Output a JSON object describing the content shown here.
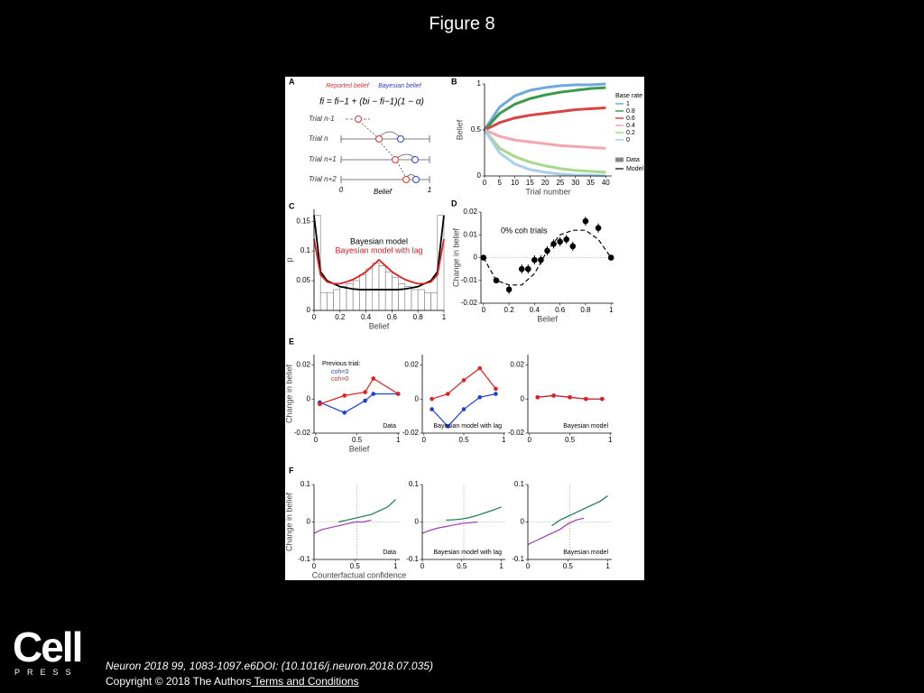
{
  "title": "Figure 8",
  "panel_labels": [
    "A",
    "B",
    "C",
    "D",
    "E",
    "F"
  ],
  "panel_a": {
    "reported": "Reported belief",
    "bayesian": "Bayesian belief",
    "formula": "fi = fi−1 + (bi − fi−1)(1 − α)",
    "trials": [
      "Trial n-1",
      "Trial n",
      "Trial n+1",
      "Trial n+2"
    ],
    "axis_min": "0",
    "axis_label": "Belief",
    "axis_max": "1"
  },
  "chart_data": [
    {
      "type": "line",
      "xlim": [
        0,
        42
      ],
      "ylim": [
        0,
        1
      ],
      "xticks": [
        0,
        5,
        10,
        15,
        20,
        25,
        30,
        35,
        40
      ],
      "yticks": [
        0,
        0.5,
        1
      ],
      "xlabel": "Trial number",
      "ylabel": "Belief",
      "legend_title": "Base rate",
      "legend_styles": [
        "Data",
        "Model"
      ],
      "series": [
        {
          "name": "1",
          "color": "#6fa8dc",
          "x": [
            0,
            5,
            10,
            15,
            20,
            25,
            30,
            35,
            40
          ],
          "values": [
            0.5,
            0.75,
            0.87,
            0.93,
            0.96,
            0.98,
            0.99,
            0.99,
            1
          ]
        },
        {
          "name": "0.8",
          "color": "#3a9a4a",
          "x": [
            0,
            5,
            10,
            15,
            20,
            25,
            30,
            35,
            40
          ],
          "values": [
            0.5,
            0.68,
            0.78,
            0.84,
            0.88,
            0.91,
            0.93,
            0.95,
            0.96
          ]
        },
        {
          "name": "0.6",
          "color": "#d64545",
          "x": [
            0,
            5,
            10,
            15,
            20,
            25,
            30,
            35,
            40
          ],
          "values": [
            0.5,
            0.58,
            0.63,
            0.66,
            0.68,
            0.7,
            0.72,
            0.73,
            0.74
          ]
        },
        {
          "name": "0.4",
          "color": "#f4a6b0",
          "x": [
            0,
            5,
            10,
            15,
            20,
            25,
            30,
            35,
            40
          ],
          "values": [
            0.5,
            0.43,
            0.39,
            0.37,
            0.35,
            0.33,
            0.32,
            0.31,
            0.3
          ]
        },
        {
          "name": "0.2",
          "color": "#a8d88a",
          "x": [
            0,
            5,
            10,
            15,
            20,
            25,
            30,
            35,
            40
          ],
          "values": [
            0.5,
            0.3,
            0.21,
            0.15,
            0.11,
            0.08,
            0.06,
            0.05,
            0.04
          ]
        },
        {
          "name": "0",
          "color": "#a9cfea",
          "x": [
            0,
            5,
            10,
            15,
            20,
            25,
            30,
            35,
            40
          ],
          "values": [
            0.5,
            0.25,
            0.13,
            0.07,
            0.04,
            0.02,
            0.01,
            0.01,
            0
          ]
        }
      ]
    },
    {
      "type": "histogram",
      "xlim": [
        0,
        1
      ],
      "ylim": [
        0,
        0.17
      ],
      "xticks": [
        0,
        0.2,
        0.4,
        0.6,
        0.8,
        1
      ],
      "yticks": [
        0,
        0.05,
        0.1,
        0.15
      ],
      "xlabel": "Belief",
      "ylabel": "p",
      "bins": [
        0,
        0.05,
        0.1,
        0.15,
        0.2,
        0.25,
        0.3,
        0.35,
        0.4,
        0.45,
        0.5,
        0.55,
        0.6,
        0.65,
        0.7,
        0.75,
        0.8,
        0.85,
        0.9,
        0.95,
        1
      ],
      "counts": [
        0.16,
        0.03,
        0.03,
        0.035,
        0.04,
        0.045,
        0.05,
        0.06,
        0.07,
        0.08,
        0.075,
        0.065,
        0.055,
        0.045,
        0.04,
        0.035,
        0.035,
        0.03,
        0.03,
        0.16
      ],
      "series": [
        {
          "name": "Bayesian model",
          "color": "#000000",
          "x": [
            0,
            0.05,
            0.1,
            0.15,
            0.2,
            0.25,
            0.3,
            0.35,
            0.4,
            0.45,
            0.5,
            0.55,
            0.6,
            0.65,
            0.7,
            0.75,
            0.8,
            0.85,
            0.9,
            0.95,
            1
          ],
          "values": [
            0.16,
            0.065,
            0.05,
            0.045,
            0.04,
            0.038,
            0.036,
            0.035,
            0.035,
            0.035,
            0.035,
            0.035,
            0.035,
            0.035,
            0.036,
            0.038,
            0.04,
            0.045,
            0.05,
            0.065,
            0.16
          ]
        },
        {
          "name": "Bayesian model with lag",
          "color": "#e02020",
          "x": [
            0,
            0.05,
            0.1,
            0.15,
            0.2,
            0.25,
            0.3,
            0.35,
            0.4,
            0.45,
            0.5,
            0.55,
            0.6,
            0.65,
            0.7,
            0.75,
            0.8,
            0.85,
            0.9,
            0.95,
            1
          ],
          "values": [
            0.12,
            0.06,
            0.048,
            0.045,
            0.045,
            0.048,
            0.052,
            0.058,
            0.065,
            0.075,
            0.085,
            0.075,
            0.065,
            0.058,
            0.052,
            0.048,
            0.045,
            0.045,
            0.048,
            0.06,
            0.12
          ]
        }
      ]
    },
    {
      "type": "scatter",
      "xlim": [
        -0.02,
        1.02
      ],
      "ylim": [
        -0.02,
        0.02
      ],
      "xticks": [
        0,
        0.2,
        0.4,
        0.6,
        0.8,
        1
      ],
      "yticks": [
        -0.02,
        -0.01,
        0,
        0.01,
        0.02
      ],
      "xlabel": "Belief",
      "ylabel": "Change in belief",
      "annotation": "0% coh trials",
      "reference_lines": true,
      "series": [
        {
          "color": "#000000",
          "x": [
            0,
            0.1,
            0.2,
            0.3,
            0.35,
            0.4,
            0.45,
            0.5,
            0.55,
            0.6,
            0.65,
            0.7,
            0.8,
            0.9,
            1
          ],
          "values": [
            0,
            -0.01,
            -0.014,
            -0.005,
            -0.005,
            -0.001,
            -0.001,
            0.003,
            0.006,
            0.007,
            0.008,
            0.005,
            0.016,
            0.013,
            0
          ],
          "errors": [
            0.001,
            0.001,
            0.002,
            0.002,
            0.002,
            0.002,
            0.002,
            0.002,
            0.002,
            0.002,
            0.002,
            0.002,
            0.002,
            0.002,
            0.001
          ]
        },
        {
          "color": "#000000",
          "dashed": true,
          "x": [
            0,
            0.1,
            0.2,
            0.3,
            0.4,
            0.5,
            0.6,
            0.7,
            0.8,
            0.9,
            1
          ],
          "values": [
            0,
            -0.01,
            -0.012,
            -0.012,
            -0.007,
            0.003,
            0.01,
            0.012,
            0.012,
            0.008,
            0
          ]
        }
      ]
    },
    {
      "type": "line",
      "xlim": [
        -0.02,
        1.02
      ],
      "ylim": [
        -0.02,
        0.026
      ],
      "xticks": [
        0,
        0.5,
        1
      ],
      "yticks": [
        -0.02,
        0,
        0.02
      ],
      "xlabel": "Belief",
      "ylabel": "Change in belief",
      "annotation": "Data",
      "legend_title": "Previous trial:",
      "series": [
        {
          "name": "coh<0",
          "color": "#1f3fd0",
          "markers": true,
          "x": [
            0.05,
            0.35,
            0.6,
            0.7,
            1
          ],
          "values": [
            -0.002,
            -0.008,
            -0.001,
            0.003,
            0.003
          ]
        },
        {
          "name": "coh>0",
          "color": "#e02020",
          "markers": true,
          "x": [
            0.05,
            0.35,
            0.6,
            0.7,
            1
          ],
          "values": [
            -0.003,
            0.002,
            0.004,
            0.012,
            0.003
          ]
        }
      ]
    },
    {
      "type": "line",
      "xlim": [
        -0.02,
        1.02
      ],
      "ylim": [
        -0.02,
        0.026
      ],
      "xticks": [
        0,
        0.5,
        1
      ],
      "yticks": [
        -0.02,
        0,
        0.02
      ],
      "annotation": "Bayesian model with lag",
      "series": [
        {
          "color": "#1f3fd0",
          "markers": true,
          "x": [
            0.1,
            0.3,
            0.5,
            0.7,
            0.9
          ],
          "values": [
            -0.006,
            -0.016,
            -0.006,
            0.001,
            0.003
          ]
        },
        {
          "color": "#e02020",
          "markers": true,
          "x": [
            0.1,
            0.3,
            0.5,
            0.7,
            0.9
          ],
          "values": [
            0,
            0.003,
            0.011,
            0.018,
            0.006
          ]
        }
      ]
    },
    {
      "type": "line",
      "xlim": [
        -0.02,
        1.02
      ],
      "ylim": [
        -0.02,
        0.026
      ],
      "xticks": [
        0,
        0.5,
        1
      ],
      "yticks": [
        -0.02,
        0,
        0.02
      ],
      "annotation": "Bayesian model",
      "series": [
        {
          "color": "#1f3fd0",
          "markers": true,
          "x": [
            0.1,
            0.3,
            0.5,
            0.7,
            0.9
          ],
          "values": [
            0.001,
            0.002,
            0.001,
            0,
            0
          ]
        },
        {
          "color": "#e02020",
          "markers": true,
          "x": [
            0.1,
            0.3,
            0.5,
            0.7,
            0.9
          ],
          "values": [
            0.001,
            0.002,
            0.001,
            0,
            0
          ]
        }
      ]
    },
    {
      "type": "line",
      "xlim": [
        0,
        1.05
      ],
      "ylim": [
        -0.1,
        0.1
      ],
      "xticks": [
        0,
        0.5,
        1
      ],
      "yticks": [
        -0.1,
        0,
        0.1
      ],
      "xlabel": "Counterfactual confidence",
      "ylabel": "Change in belief",
      "annotation": "Data",
      "reference_lines": true,
      "series": [
        {
          "color": "#9b3fb5",
          "x": [
            0,
            0.1,
            0.2,
            0.3,
            0.4,
            0.5,
            0.6,
            0.7
          ],
          "values": [
            -0.03,
            -0.02,
            -0.015,
            -0.01,
            -0.005,
            0,
            0,
            0.005
          ]
        },
        {
          "color": "#1a7a4a",
          "x": [
            0.3,
            0.4,
            0.5,
            0.6,
            0.7,
            0.8,
            0.9,
            1
          ],
          "values": [
            0,
            0.005,
            0.01,
            0.015,
            0.02,
            0.03,
            0.04,
            0.06
          ]
        }
      ]
    },
    {
      "type": "line",
      "xlim": [
        0,
        1.05
      ],
      "ylim": [
        -0.1,
        0.1
      ],
      "xticks": [
        0,
        0.5,
        1
      ],
      "yticks": [
        -0.1,
        0,
        0.1
      ],
      "annotation": "Bayesian model with lag",
      "reference_lines": true,
      "series": [
        {
          "color": "#9b3fb5",
          "x": [
            0,
            0.1,
            0.2,
            0.3,
            0.4,
            0.5,
            0.6,
            0.7
          ],
          "values": [
            -0.03,
            -0.022,
            -0.016,
            -0.012,
            -0.008,
            -0.004,
            -0.002,
            0
          ]
        },
        {
          "color": "#1a7a4a",
          "x": [
            0.3,
            0.4,
            0.5,
            0.6,
            0.7,
            0.8,
            0.9,
            1
          ],
          "values": [
            0.005,
            0.006,
            0.008,
            0.012,
            0.018,
            0.025,
            0.032,
            0.04
          ]
        }
      ]
    },
    {
      "type": "line",
      "xlim": [
        0,
        1.05
      ],
      "ylim": [
        -0.1,
        0.1
      ],
      "xticks": [
        0,
        0.5,
        1
      ],
      "yticks": [
        -0.1,
        0,
        0.1
      ],
      "annotation": "Bayesian model",
      "reference_lines": true,
      "series": [
        {
          "color": "#9b3fb5",
          "x": [
            0,
            0.1,
            0.2,
            0.3,
            0.4,
            0.5,
            0.6,
            0.7
          ],
          "values": [
            -0.06,
            -0.05,
            -0.04,
            -0.03,
            -0.02,
            -0.005,
            0.005,
            0.01
          ]
        },
        {
          "color": "#1a7a4a",
          "x": [
            0.3,
            0.4,
            0.5,
            0.6,
            0.7,
            0.8,
            0.9,
            1
          ],
          "values": [
            -0.01,
            0.005,
            0.015,
            0.025,
            0.035,
            0.045,
            0.055,
            0.07
          ]
        }
      ]
    }
  ],
  "footer": {
    "logo": "Cell",
    "logo_sub": "PRESS",
    "citation": "Neuron 2018 99, 1083-1097.e6DOI: (10.1016/j.neuron.2018.07.035)",
    "copyright": "Copyright © 2018 The Authors",
    "link": " Terms and Conditions"
  }
}
